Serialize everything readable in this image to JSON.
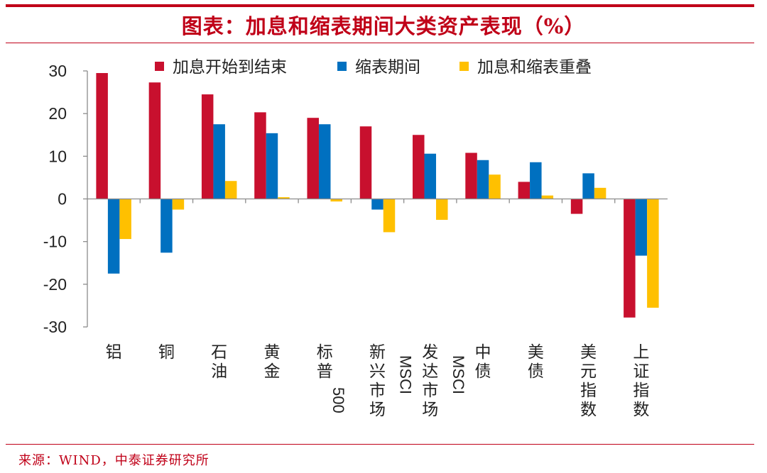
{
  "title": "图表：加息和缩表期间大类资产表现（%）",
  "source": "来源：WIND，中泰证券研究所",
  "colors": {
    "accent": "#c00018",
    "series": [
      "#c8102e",
      "#0070c0",
      "#ffc000"
    ]
  },
  "chart_data": {
    "type": "bar",
    "ylim": [
      -30,
      30
    ],
    "yticks": [
      "30",
      "20",
      "10",
      "0",
      "-10",
      "-20",
      "-30"
    ],
    "grid": false,
    "legend_position": "top",
    "categories": [
      "铝",
      "铜",
      "石油",
      "黄金",
      "标普500",
      "新兴市场MSCI",
      "发达市场MSCI",
      "中债",
      "美债",
      "美元指数",
      "上证指数"
    ],
    "category_labels": [
      [
        "铝"
      ],
      [
        "铜"
      ],
      [
        "石",
        "油"
      ],
      [
        "黄",
        "金"
      ],
      [
        "标",
        "普",
        "500"
      ],
      [
        "新",
        "兴",
        "市",
        "场"
      ],
      [
        "发",
        "达",
        "市",
        "场"
      ],
      [
        "中",
        "债"
      ],
      [
        "美",
        "债"
      ],
      [
        "美",
        "元",
        "指",
        "数"
      ],
      [
        "上",
        "证",
        "指",
        "数"
      ]
    ],
    "series": [
      {
        "name": "加息开始到结束",
        "values": [
          29.5,
          27.3,
          24.5,
          20.3,
          19.0,
          17.0,
          15.0,
          10.8,
          4.0,
          -3.5,
          -27.8
        ]
      },
      {
        "name": "缩表期间",
        "values": [
          -17.5,
          -12.6,
          17.5,
          15.4,
          17.5,
          -2.5,
          10.6,
          9.1,
          8.6,
          6.0,
          -13.3
        ]
      },
      {
        "name": "加息和缩表重叠",
        "values": [
          -9.4,
          -2.5,
          4.2,
          0.4,
          -0.6,
          -7.8,
          -4.9,
          5.7,
          0.8,
          2.6,
          -25.5
        ]
      }
    ],
    "vertical_text": "MSCI"
  }
}
